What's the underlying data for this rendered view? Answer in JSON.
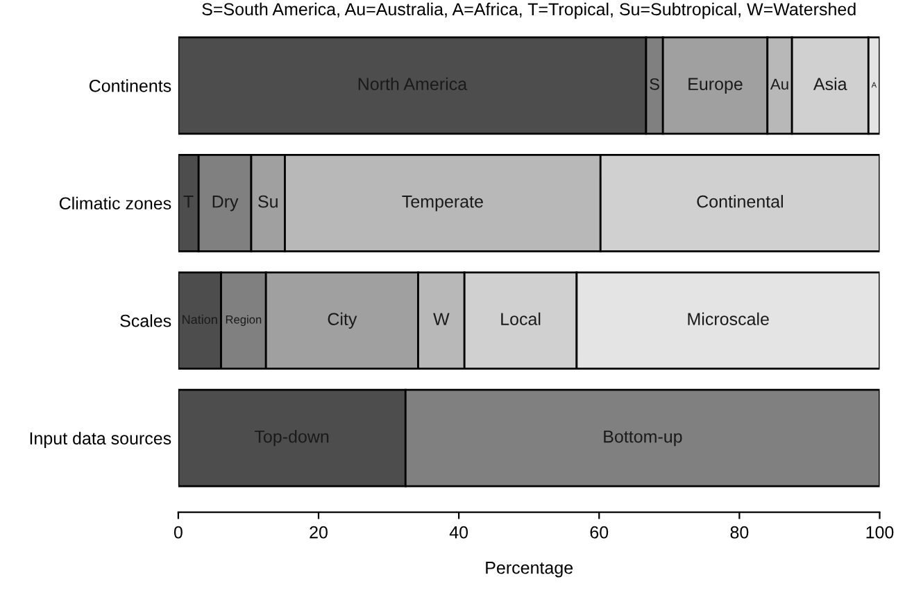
{
  "chart_data": {
    "type": "bar",
    "orientation": "horizontal",
    "stacked": true,
    "title": "S=South America, Au=Australia, A=Africa, T=Tropical, Su=Subtropical, W=Watershed",
    "xlabel": "Percentage",
    "categories": [
      "Continents",
      "Climatic zones",
      "Scales",
      "Input data sources"
    ],
    "series": [
      {
        "color": "#4d4d4d",
        "values": [
          66.7,
          2.9,
          6.1,
          32.4
        ],
        "value_labels": [
          "North America",
          "T",
          "Nation",
          "Top-down"
        ]
      },
      {
        "color": "#808080",
        "values": [
          2.4,
          7.5,
          6.4,
          67.6
        ],
        "value_labels": [
          "S",
          "Dry",
          "Region",
          "Bottom-up"
        ]
      },
      {
        "color": "#a0a0a0",
        "values": [
          14.9,
          4.8,
          21.7,
          null
        ],
        "value_labels": [
          "Europe",
          "Su",
          "City",
          null
        ]
      },
      {
        "color": "#b8b8b8",
        "values": [
          3.5,
          45.0,
          6.6,
          null
        ],
        "value_labels": [
          "Au",
          "Temperate",
          "W",
          null
        ]
      },
      {
        "color": "#d0d0d0",
        "values": [
          10.9,
          39.8,
          16.0,
          null
        ],
        "value_labels": [
          "Asia",
          "Continental",
          "Local",
          null
        ]
      },
      {
        "color": "#e4e4e4",
        "values": [
          1.6,
          null,
          43.2,
          null
        ],
        "value_labels": [
          "A",
          null,
          "Microscale",
          null
        ]
      }
    ],
    "xlim": [
      0,
      100
    ],
    "xticks": [
      0,
      20,
      40,
      60,
      80,
      100
    ],
    "grid": false
  }
}
